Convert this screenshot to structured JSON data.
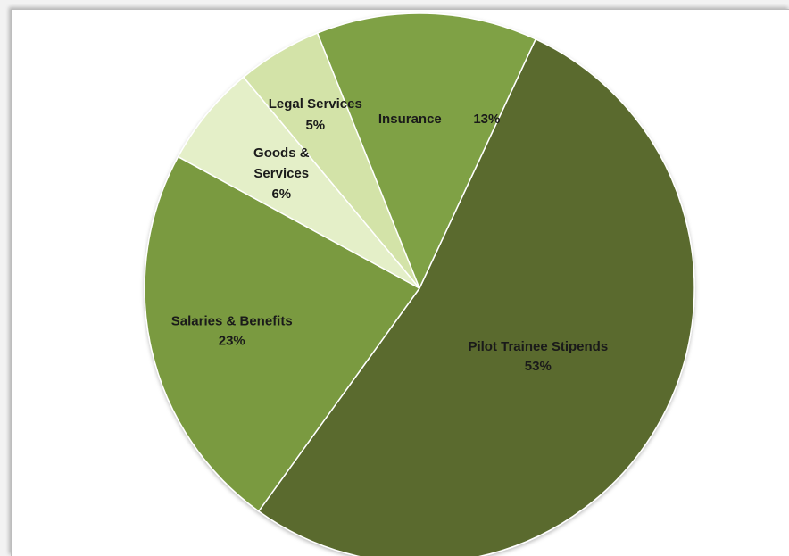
{
  "chart_data": {
    "type": "pie",
    "title": "",
    "slices": [
      {
        "label": "Pilot Trainee Stipends",
        "value": 53,
        "value_label": "53%",
        "color": "#5a6b2e"
      },
      {
        "label": "Salaries & Benefits",
        "value": 23,
        "value_label": "23%",
        "color": "#7a9a40"
      },
      {
        "label": "Goods & Services",
        "value": 6,
        "value_label": "6%",
        "color": "#e4efc8"
      },
      {
        "label": "Legal Services",
        "value": 5,
        "value_label": "5%",
        "color": "#d3e3a8"
      },
      {
        "label": "Insurance",
        "value": 13,
        "value_label": "13%",
        "color": "#7fa145"
      }
    ]
  }
}
